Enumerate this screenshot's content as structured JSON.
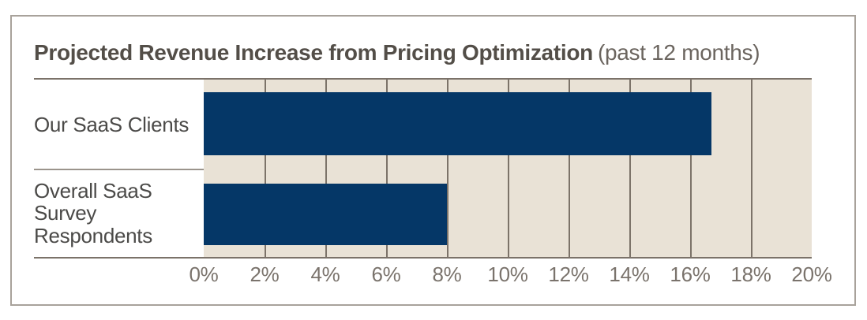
{
  "chart": {
    "title": "Projected Revenue Increase from Pricing Optimization",
    "subtitle": "(past 12 months)",
    "colors": {
      "bar": "#053767",
      "plot_bg": "#e9e2d6",
      "gridline": "#7c7369",
      "axis_line": "#7b7269",
      "card_border": "#a8a29b",
      "separator": "#9b948c",
      "title_text": "#534e48",
      "subtitle_text": "#6b655f",
      "label_text": "#4b4a48",
      "tick_text": "#7a736c"
    }
  },
  "chart_data": {
    "type": "bar",
    "orientation": "horizontal",
    "title": "Projected Revenue Increase from Pricing Optimization (past 12 months)",
    "categories": [
      "Our SaaS Clients",
      "Overall SaaS Survey Respondents"
    ],
    "values": [
      16.7,
      8
    ],
    "unit": "%",
    "xlabel": "",
    "ylabel": "",
    "xlim": [
      0,
      20
    ],
    "tick_step": 2,
    "x_ticks": [
      "0%",
      "2%",
      "4%",
      "6%",
      "8%",
      "10%",
      "12%",
      "14%",
      "16%",
      "18%",
      "20%"
    ],
    "grid": "vertical",
    "legend": false
  }
}
